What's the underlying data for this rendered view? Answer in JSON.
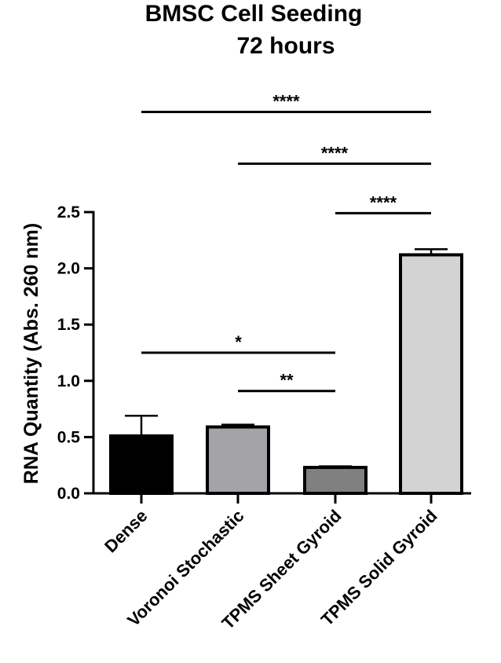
{
  "chart_data": {
    "type": "bar",
    "title": [
      "BMSC Cell Seeding",
      "72 hours"
    ],
    "xlabel": "",
    "ylabel": "RNA Quantity  (Abs. 260 nm)",
    "ylim": [
      0,
      2.5
    ],
    "yticks": [
      "0.0",
      "0.5",
      "1.0",
      "1.5",
      "2.0",
      "2.5"
    ],
    "categories": [
      "Dense",
      "Voronoi Stochastic",
      "TPMS Sheet Gyroid",
      "TPMS Solid Gyroid"
    ],
    "values": [
      0.51,
      0.59,
      0.23,
      2.12
    ],
    "errors": [
      0.18,
      0.02,
      0.01,
      0.05
    ],
    "bar_colors": [
      "#000000",
      "#a3a3a8",
      "#808080",
      "#d3d3d3"
    ],
    "significance": [
      {
        "from": 0,
        "to": 3,
        "y": 3.39,
        "label": "****"
      },
      {
        "from": 1,
        "to": 3,
        "y": 2.93,
        "label": "****"
      },
      {
        "from": 2,
        "to": 3,
        "y": 2.49,
        "label": "****"
      },
      {
        "from": 0,
        "to": 2,
        "y": 1.25,
        "label": "*"
      },
      {
        "from": 1,
        "to": 2,
        "y": 0.91,
        "label": "**"
      }
    ],
    "grid": false,
    "legend": "none"
  }
}
